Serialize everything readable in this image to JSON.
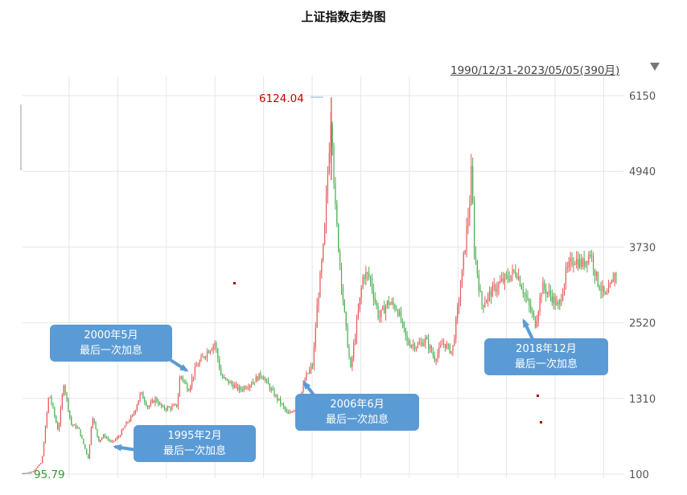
{
  "chart_data": {
    "type": "candlestick",
    "title": "上证指数走势图",
    "range_label": "1990/12/31-2023/05/05(390月)",
    "y_ticks": [
      6150,
      4940,
      3730,
      2520,
      1310,
      100
    ],
    "ylim": [
      100,
      6150
    ],
    "x_range": [
      "1990-12",
      "2023-05"
    ],
    "max_label": "6124.04",
    "min_label": "95.79",
    "approx_monthly_close": [
      [
        1990.95,
        110
      ],
      [
        1991.5,
        140
      ],
      [
        1992.0,
        290
      ],
      [
        1992.4,
        1400
      ],
      [
        1992.9,
        780
      ],
      [
        1993.2,
        1560
      ],
      [
        1993.6,
        900
      ],
      [
        1994.0,
        830
      ],
      [
        1994.55,
        340
      ],
      [
        1994.75,
        1050
      ],
      [
        1995.1,
        630
      ],
      [
        1995.4,
        720
      ],
      [
        1995.8,
        600
      ],
      [
        1996.2,
        700
      ],
      [
        1996.6,
        900
      ],
      [
        1997.0,
        1050
      ],
      [
        1997.4,
        1400
      ],
      [
        1997.8,
        1170
      ],
      [
        1998.2,
        1300
      ],
      [
        1998.6,
        1150
      ],
      [
        1999.0,
        1160
      ],
      [
        1999.4,
        1200
      ],
      [
        1999.55,
        1700
      ],
      [
        2000.0,
        1450
      ],
      [
        2000.4,
        1800
      ],
      [
        2001.0,
        2050
      ],
      [
        2001.45,
        2200
      ],
      [
        2001.8,
        1650
      ],
      [
        2002.3,
        1550
      ],
      [
        2002.8,
        1450
      ],
      [
        2003.4,
        1550
      ],
      [
        2004.0,
        1700
      ],
      [
        2004.5,
        1450
      ],
      [
        2005.0,
        1250
      ],
      [
        2005.45,
        1050
      ],
      [
        2005.8,
        1150
      ],
      [
        2006.0,
        1200
      ],
      [
        2006.4,
        1650
      ],
      [
        2006.8,
        1850
      ],
      [
        2007.0,
        2700
      ],
      [
        2007.4,
        3800
      ],
      [
        2007.8,
        5950
      ],
      [
        2008.0,
        4400
      ],
      [
        2008.5,
        2700
      ],
      [
        2008.85,
        1750
      ],
      [
        2009.0,
        2100
      ],
      [
        2009.55,
        3300
      ],
      [
        2009.9,
        3250
      ],
      [
        2010.4,
        2600
      ],
      [
        2010.9,
        2850
      ],
      [
        2011.4,
        2750
      ],
      [
        2011.95,
        2200
      ],
      [
        2012.5,
        2150
      ],
      [
        2012.95,
        2250
      ],
      [
        2013.45,
        1950
      ],
      [
        2013.9,
        2200
      ],
      [
        2014.4,
        2050
      ],
      [
        2014.9,
        3200
      ],
      [
        2015.4,
        4600
      ],
      [
        2015.45,
        5000
      ],
      [
        2015.6,
        3700
      ],
      [
        2016.0,
        2800
      ],
      [
        2016.5,
        3000
      ],
      [
        2017.0,
        3150
      ],
      [
        2017.9,
        3350
      ],
      [
        2018.5,
        2850
      ],
      [
        2018.95,
        2500
      ],
      [
        2019.3,
        3100
      ],
      [
        2019.8,
        2950
      ],
      [
        2020.2,
        2750
      ],
      [
        2020.6,
        3300
      ],
      [
        2021.0,
        3550
      ],
      [
        2021.5,
        3450
      ],
      [
        2021.95,
        3650
      ],
      [
        2022.3,
        3200
      ],
      [
        2022.8,
        2900
      ],
      [
        2023.3,
        3320
      ]
    ],
    "annotations": [
      {
        "date_lines": [
          "1995年2月",
          "最后一次加息"
        ],
        "x": 1995.1
      },
      {
        "date_lines": [
          "2000年5月",
          "最后一次加息"
        ],
        "x": 2000.4
      },
      {
        "date_lines": [
          "2006年6月",
          "最后一次加息"
        ],
        "x": 2006.45
      },
      {
        "date_lines": [
          "2018年12月",
          "最后一次加息"
        ],
        "x": 2018.95
      }
    ],
    "colors": {
      "up": "#e85a5a",
      "down": "#4caf50",
      "callout": "#5b9bd5",
      "grid": "#e6e6e6",
      "max_label": "#cc0000",
      "min_label": "#2e9e2e"
    }
  }
}
